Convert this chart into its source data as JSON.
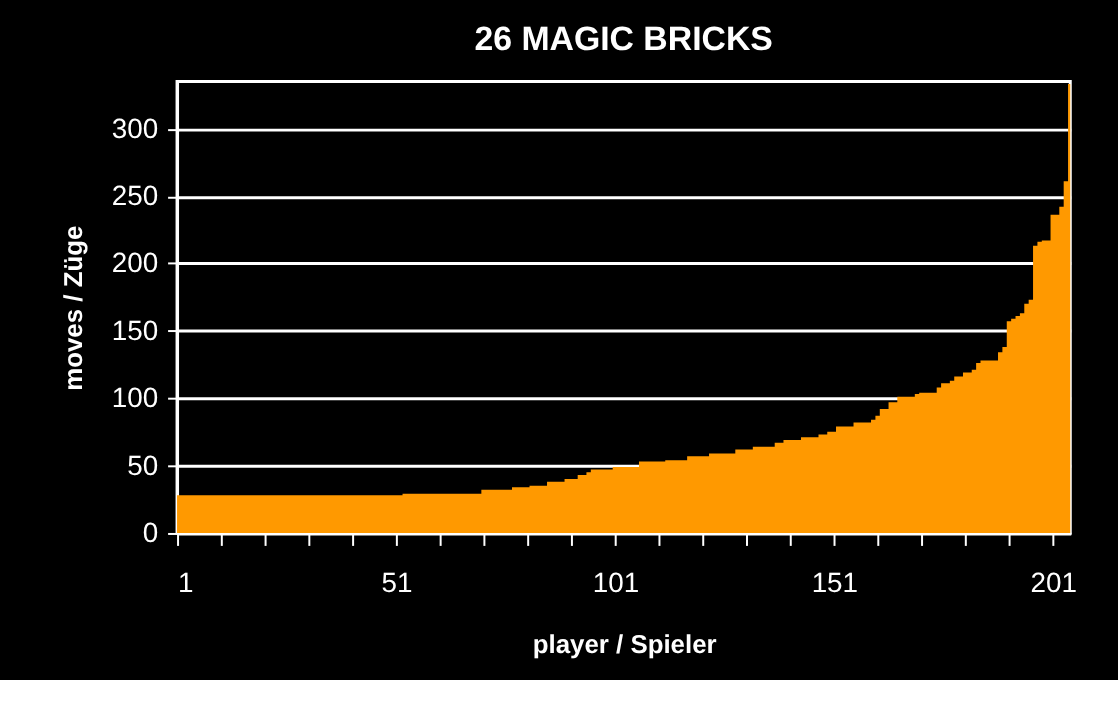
{
  "chart_data": {
    "type": "area",
    "title": "26 MAGIC BRICKS",
    "xlabel": "player / Spieler",
    "ylabel": "moves / Züge",
    "color": "#ff9900",
    "x": [
      1,
      2,
      3,
      4,
      5,
      6,
      7,
      8,
      9,
      10,
      11,
      12,
      13,
      14,
      15,
      16,
      17,
      18,
      19,
      20,
      21,
      22,
      23,
      24,
      25,
      26,
      27,
      28,
      29,
      30,
      31,
      32,
      33,
      34,
      35,
      36,
      37,
      38,
      39,
      40,
      41,
      42,
      43,
      44,
      45,
      46,
      47,
      48,
      49,
      50,
      51,
      52,
      53,
      54,
      55,
      56,
      57,
      58,
      59,
      60,
      61,
      62,
      63,
      64,
      65,
      66,
      67,
      68,
      69,
      70,
      71,
      72,
      73,
      74,
      75,
      76,
      77,
      78,
      79,
      80,
      81,
      82,
      83,
      84,
      85,
      86,
      87,
      88,
      89,
      90,
      91,
      92,
      93,
      94,
      95,
      96,
      97,
      98,
      99,
      100,
      101,
      102,
      103,
      104,
      105,
      106,
      107,
      108,
      109,
      110,
      111,
      112,
      113,
      114,
      115,
      116,
      117,
      118,
      119,
      120,
      121,
      122,
      123,
      124,
      125,
      126,
      127,
      128,
      129,
      130,
      131,
      132,
      133,
      134,
      135,
      136,
      137,
      138,
      139,
      140,
      141,
      142,
      143,
      144,
      145,
      146,
      147,
      148,
      149,
      150,
      151,
      152,
      153,
      154,
      155,
      156,
      157,
      158,
      159,
      160,
      161,
      162,
      163,
      164,
      165,
      166,
      167,
      168,
      169,
      170,
      171,
      172,
      173,
      174,
      175,
      176,
      177,
      178,
      179,
      180,
      181,
      182,
      183,
      184,
      185,
      186,
      187,
      188,
      189,
      190,
      191,
      192,
      193,
      194,
      195,
      196,
      197,
      198,
      199,
      200,
      201,
      202,
      203,
      204,
      205
    ],
    "values": [
      28,
      28,
      28,
      28,
      28,
      28,
      28,
      28,
      28,
      28,
      28,
      28,
      28,
      28,
      28,
      28,
      28,
      28,
      28,
      28,
      28,
      28,
      28,
      28,
      28,
      28,
      28,
      28,
      28,
      28,
      28,
      28,
      28,
      28,
      28,
      28,
      28,
      28,
      28,
      28,
      28,
      28,
      28,
      28,
      28,
      28,
      28,
      28,
      28,
      28,
      28,
      28,
      29,
      29,
      29,
      29,
      29,
      29,
      29,
      29,
      29,
      29,
      29,
      29,
      29,
      29,
      29,
      29,
      29,
      29,
      32,
      32,
      32,
      32,
      32,
      32,
      32,
      34,
      34,
      34,
      34,
      35,
      35,
      35,
      35,
      38,
      38,
      38,
      38,
      40,
      40,
      40,
      43,
      43,
      45,
      47,
      47,
      47,
      47,
      47,
      49,
      49,
      49,
      49,
      49,
      49,
      53,
      53,
      53,
      53,
      53,
      53,
      54,
      54,
      54,
      54,
      54,
      57,
      57,
      57,
      57,
      57,
      59,
      59,
      59,
      59,
      59,
      59,
      62,
      62,
      62,
      62,
      64,
      64,
      64,
      64,
      64,
      67,
      67,
      69,
      69,
      69,
      69,
      71,
      71,
      71,
      71,
      73,
      73,
      75,
      75,
      79,
      79,
      79,
      79,
      82,
      82,
      82,
      82,
      84,
      87,
      92,
      92,
      97,
      97,
      101,
      101,
      101,
      101,
      103,
      104,
      104,
      104,
      104,
      108,
      111,
      111,
      113,
      116,
      116,
      119,
      119,
      121,
      126,
      128,
      128,
      128,
      128,
      134,
      138,
      157,
      159,
      161,
      163,
      170,
      173,
      213,
      216,
      217,
      217,
      236,
      236,
      242,
      261,
      333
    ],
    "xlim": [
      1,
      205
    ],
    "xticks": [
      1,
      {
        "value": 11,
        "label": null
      },
      {
        "value": 21,
        "label": null
      },
      {
        "value": 31,
        "label": null
      },
      {
        "value": 41,
        "label": null
      },
      51,
      {
        "value": 61,
        "label": null
      },
      {
        "value": 71,
        "label": null
      },
      {
        "value": 81,
        "label": null
      },
      {
        "value": 91,
        "label": null
      },
      101,
      {
        "value": 111,
        "label": null
      },
      {
        "value": 121,
        "label": null
      },
      {
        "value": 131,
        "label": null
      },
      {
        "value": 141,
        "label": null
      },
      151,
      {
        "value": 161,
        "label": null
      },
      {
        "value": 171,
        "label": null
      },
      {
        "value": 181,
        "label": null
      },
      {
        "value": 191,
        "label": null
      },
      201
    ],
    "ylim": [
      0,
      335
    ],
    "yticks": [
      0,
      50,
      100,
      150,
      200,
      250,
      300
    ],
    "grid": "y"
  }
}
